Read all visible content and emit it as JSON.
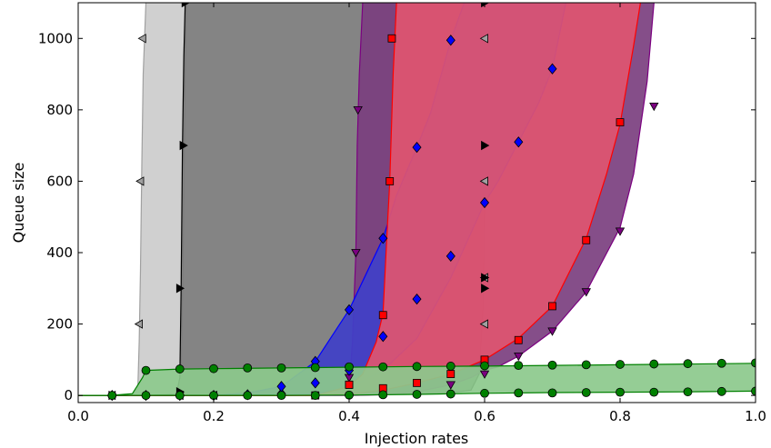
{
  "chart_data": {
    "type": "area",
    "xlabel": "Injection rates",
    "ylabel": "Queue size",
    "xlim": [
      0.0,
      1.0
    ],
    "ylim": [
      -20,
      1100
    ],
    "x_ticks": [
      0.0,
      0.2,
      0.4,
      0.6,
      0.8,
      1.0
    ],
    "x_tick_labels": [
      "0.0",
      "0.2",
      "0.4",
      "0.6",
      "0.8",
      "1.0"
    ],
    "y_ticks": [
      0,
      200,
      400,
      600,
      800,
      1000
    ],
    "y_tick_labels": [
      "0",
      "200",
      "400",
      "600",
      "800",
      "1000"
    ],
    "grid": false,
    "legend": "none",
    "bands": [
      {
        "color": "#a0a0a0",
        "fill": "#cccccc",
        "marker": "triangle-left",
        "lower": {
          "x": [
            0.0,
            0.05,
            0.1,
            0.15,
            0.152,
            0.155,
            0.158,
            0.16,
            0.18,
            0.2,
            0.25,
            0.3,
            0.35,
            0.4,
            0.45,
            0.5,
            0.55,
            0.58,
            0.595,
            0.6,
            0.603,
            0.606
          ],
          "y": [
            0,
            0,
            0,
            2,
            60,
            400,
            900,
            1100,
            1100,
            1100,
            1100,
            1100,
            1100,
            1100,
            1100,
            1100,
            1100,
            1100,
            1100,
            1100,
            1100,
            1100
          ]
        },
        "upper": {
          "x": [
            0.0,
            0.05,
            0.08,
            0.088,
            0.09,
            0.092,
            0.094,
            0.096,
            0.1
          ],
          "y": [
            0,
            0,
            2,
            20,
            150,
            350,
            650,
            900,
            1100
          ]
        },
        "markers": {
          "x": [
            0.05,
            0.09,
            0.092,
            0.095,
            0.15,
            0.2,
            0.6,
            0.6,
            0.6,
            0.6
          ],
          "y": [
            0,
            200,
            600,
            1000,
            0,
            0,
            200,
            600,
            1000,
            330
          ]
        }
      },
      {
        "color": "#000000",
        "fill": "#7a7a7a",
        "marker": "triangle-right",
        "lower": {
          "x": [
            0.0,
            0.1,
            0.2,
            0.3,
            0.4,
            0.5,
            0.55,
            0.58,
            0.592,
            0.598,
            0.6,
            0.602,
            0.605
          ],
          "y": [
            0,
            0,
            0,
            1,
            2,
            4,
            7,
            15,
            60,
            250,
            500,
            900,
            1100
          ]
        },
        "upper": {
          "x": [
            0.0,
            0.1,
            0.145,
            0.15,
            0.152,
            0.154,
            0.156,
            0.158
          ],
          "y": [
            0,
            0,
            3,
            50,
            300,
            700,
            950,
            1100
          ]
        },
        "markers": {
          "x": [
            0.05,
            0.15,
            0.15,
            0.155,
            0.158,
            0.6,
            0.6,
            0.6,
            0.6
          ],
          "y": [
            0,
            10,
            300,
            700,
            1100,
            300,
            700,
            1100,
            330
          ]
        }
      },
      {
        "color": "#7b0080",
        "fill": "#7b3f7f",
        "marker": "triangle-down",
        "lower": {
          "x": [
            0.0,
            0.2,
            0.3,
            0.4,
            0.45,
            0.5,
            0.55,
            0.58,
            0.6,
            0.62,
            0.65,
            0.7,
            0.75,
            0.8,
            0.82,
            0.84,
            0.85
          ],
          "y": [
            0,
            0,
            0,
            0,
            2,
            10,
            30,
            50,
            70,
            80,
            110,
            180,
            290,
            470,
            620,
            880,
            1100
          ]
        },
        "upper": {
          "x": [
            0.0,
            0.3,
            0.38,
            0.4,
            0.405,
            0.41,
            0.412,
            0.415,
            0.42
          ],
          "y": [
            0,
            0,
            5,
            20,
            150,
            400,
            700,
            900,
            1100
          ]
        },
        "markers": {
          "x": [
            0.4,
            0.41,
            0.413,
            0.55,
            0.6,
            0.65,
            0.7,
            0.75,
            0.8,
            0.85
          ],
          "y": [
            50,
            400,
            800,
            30,
            60,
            110,
            180,
            290,
            460,
            810
          ]
        }
      },
      {
        "color": "#0000ff",
        "fill": "#4040c8",
        "marker": "diamond",
        "lower": {
          "x": [
            0.0,
            0.2,
            0.3,
            0.35,
            0.4,
            0.45,
            0.5,
            0.55,
            0.6,
            0.62,
            0.65,
            0.68,
            0.7,
            0.72
          ],
          "y": [
            0,
            0,
            2,
            5,
            20,
            70,
            160,
            330,
            540,
            600,
            710,
            820,
            915,
            1100
          ]
        },
        "upper": {
          "x": [
            0.0,
            0.2,
            0.25,
            0.3,
            0.35,
            0.4,
            0.45,
            0.47,
            0.5,
            0.52,
            0.55,
            0.57
          ],
          "y": [
            0,
            0,
            7,
            25,
            95,
            240,
            440,
            560,
            695,
            790,
            995,
            1100
          ]
        },
        "markers": {
          "x": [
            0.05,
            0.1,
            0.15,
            0.2,
            0.25,
            0.3,
            0.35,
            0.4,
            0.45,
            0.5,
            0.55,
            0.6,
            0.65,
            0.7,
            0.3,
            0.35,
            0.4,
            0.45,
            0.5,
            0.55
          ],
          "y": [
            0,
            0,
            0,
            0,
            2,
            5,
            35,
            70,
            165,
            270,
            390,
            540,
            710,
            915,
            25,
            95,
            240,
            440,
            695,
            995
          ]
        }
      },
      {
        "color": "#ff0000",
        "fill": "#e05570",
        "marker": "square",
        "lower": {
          "x": [
            0.0,
            0.3,
            0.4,
            0.45,
            0.5,
            0.55,
            0.6,
            0.65,
            0.7,
            0.75,
            0.78,
            0.8,
            0.82,
            0.83
          ],
          "y": [
            0,
            0,
            3,
            15,
            35,
            60,
            100,
            160,
            250,
            440,
            620,
            760,
            980,
            1100
          ]
        },
        "upper": {
          "x": [
            0.0,
            0.35,
            0.4,
            0.42,
            0.44,
            0.45,
            0.455,
            0.46,
            0.465,
            0.47
          ],
          "y": [
            0,
            0,
            25,
            60,
            150,
            230,
            420,
            600,
            900,
            1100
          ]
        },
        "markers": {
          "x": [
            0.35,
            0.4,
            0.45,
            0.5,
            0.55,
            0.6,
            0.65,
            0.7,
            0.75,
            0.8,
            0.4,
            0.45,
            0.46,
            0.463
          ],
          "y": [
            0,
            30,
            20,
            35,
            60,
            100,
            155,
            250,
            435,
            765,
            30,
            225,
            600,
            1000
          ]
        }
      },
      {
        "color": "#008000",
        "fill": "#8cc98c",
        "marker": "circle",
        "lower": {
          "x": [
            0.0,
            0.05,
            0.1,
            0.2,
            0.3,
            0.4,
            0.5,
            0.6,
            0.7,
            0.8,
            0.9,
            1.0
          ],
          "y": [
            0,
            0,
            0,
            0,
            0,
            1,
            3,
            6,
            8,
            9,
            10,
            12
          ]
        },
        "upper": {
          "x": [
            0.0,
            0.05,
            0.08,
            0.095,
            0.1,
            0.15,
            0.2,
            0.3,
            0.4,
            0.5,
            0.6,
            0.7,
            0.8,
            0.9,
            1.0
          ],
          "y": [
            0,
            0,
            5,
            50,
            70,
            74,
            75,
            77,
            79,
            81,
            82,
            84,
            86,
            88,
            90
          ]
        },
        "markers": {
          "x": [
            0.05,
            0.1,
            0.15,
            0.2,
            0.25,
            0.3,
            0.35,
            0.4,
            0.45,
            0.5,
            0.55,
            0.6,
            0.65,
            0.7,
            0.75,
            0.8,
            0.85,
            0.9,
            0.95,
            1.0,
            0.1,
            0.15,
            0.2,
            0.25,
            0.3,
            0.35,
            0.4,
            0.45,
            0.5,
            0.55,
            0.6,
            0.65,
            0.7,
            0.75,
            0.8,
            0.85,
            0.9,
            0.95,
            1.0
          ],
          "y": [
            0,
            0,
            0,
            0,
            0,
            0,
            0,
            1,
            2,
            3,
            4,
            6,
            7,
            7,
            8,
            9,
            9,
            10,
            11,
            12,
            70,
            74,
            75,
            77,
            77,
            78,
            80,
            80,
            81,
            82,
            83,
            84,
            85,
            86,
            87,
            88,
            89,
            90,
            91
          ]
        }
      }
    ]
  }
}
